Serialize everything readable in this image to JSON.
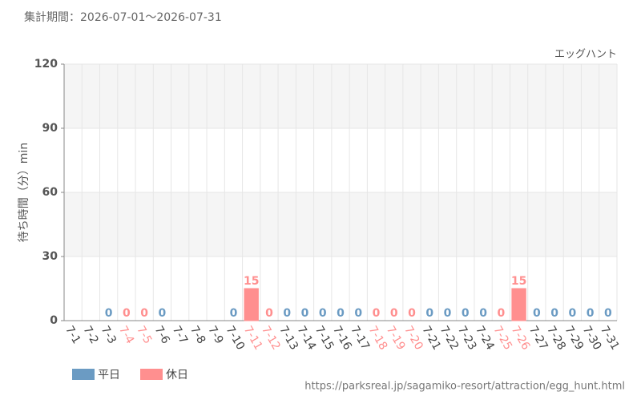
{
  "chart_data": {
    "type": "bar",
    "title": "集計期間：2026-07-01～2026-07-31",
    "subtitle": "エッグハント",
    "y_label": "待ち時間（分）min",
    "source": "https://parksreal.jp/sagamiko-resort/attraction/egg_hunt.html",
    "categories": [
      "7-1",
      "7-2",
      "7-3",
      "7-4",
      "7-5",
      "7-6",
      "7-7",
      "7-8",
      "7-9",
      "7-10",
      "7-11",
      "7-12",
      "7-13",
      "7-14",
      "7-15",
      "7-16",
      "7-17",
      "7-18",
      "7-19",
      "7-20",
      "7-21",
      "7-22",
      "7-23",
      "7-24",
      "7-25",
      "7-26",
      "7-27",
      "7-28",
      "7-29",
      "7-30",
      "7-31"
    ],
    "series": [
      {
        "name": "平日",
        "color": "#6b9bc3",
        "values": [
          null,
          null,
          0,
          null,
          null,
          0,
          null,
          null,
          null,
          0,
          null,
          null,
          0,
          0,
          0,
          0,
          0,
          null,
          null,
          null,
          0,
          0,
          0,
          0,
          null,
          null,
          0,
          0,
          0,
          0,
          0
        ]
      },
      {
        "name": "休日",
        "color": "#ff8f8f",
        "values": [
          null,
          null,
          null,
          0,
          0,
          null,
          null,
          null,
          null,
          null,
          15,
          0,
          null,
          null,
          null,
          null,
          null,
          0,
          0,
          0,
          null,
          null,
          null,
          null,
          0,
          15,
          null,
          null,
          null,
          null,
          null
        ]
      }
    ],
    "ylim": [
      0,
      120
    ],
    "yticks": [
      0,
      30,
      60,
      90,
      120
    ],
    "grid": true
  }
}
